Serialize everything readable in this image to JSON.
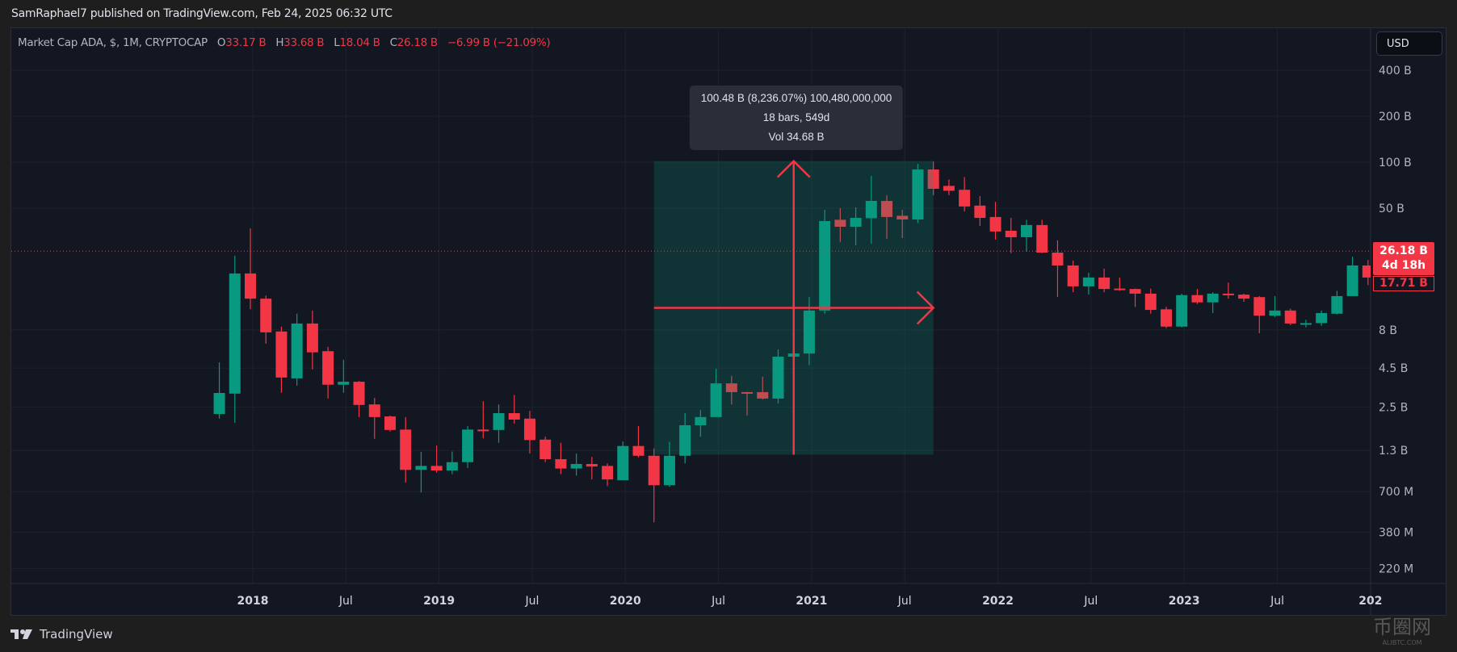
{
  "header": {
    "published": "SamRaphael7 published on TradingView.com, Feb 24, 2025 06:32 UTC"
  },
  "legend": {
    "symbol": "Market Cap ADA, $, 1M, CRYPTOCAP",
    "o_label": "O",
    "o": "33.17 B",
    "h_label": "H",
    "h": "33.68 B",
    "l_label": "L",
    "l": "18.04 B",
    "c_label": "C",
    "c": "26.18 B",
    "change": "−6.99 B (−21.09%)"
  },
  "currency_button": "USD",
  "price_badge": {
    "price": "26.18 B",
    "countdown": "4d 18h",
    "prev": "17.71 B"
  },
  "measure_tooltip": {
    "line1": "100.48 B (8,236.07%) 100,480,000,000",
    "line2": "18 bars, 549d",
    "line3": "Vol 34.68 B"
  },
  "footer": {
    "brand": "TradingView"
  },
  "watermark": {
    "text": "币圈网",
    "sub": "ALIBTC.COM"
  },
  "colors": {
    "up": "#089981",
    "down": "#f23645",
    "measure_fill": "#089981",
    "grid": "#1e222d"
  },
  "chart_data": {
    "type": "candlestick",
    "title": "Market Cap ADA, $, 1M, CRYPTOCAP",
    "yscale": "log",
    "units": "B USD",
    "last_price": 26.18,
    "y_ticks": [
      {
        "v": 400,
        "label": "400 B"
      },
      {
        "v": 200,
        "label": "200 B"
      },
      {
        "v": 100,
        "label": "100 B"
      },
      {
        "v": 50,
        "label": "50 B"
      },
      {
        "v": 8,
        "label": "8 B"
      },
      {
        "v": 4.5,
        "label": "4.5 B"
      },
      {
        "v": 2.5,
        "label": "2.5 B"
      },
      {
        "v": 1.3,
        "label": "1.3 B"
      },
      {
        "v": 0.7,
        "label": "700 M"
      },
      {
        "v": 0.38,
        "label": "380 M"
      },
      {
        "v": 0.22,
        "label": "220 M"
      }
    ],
    "x_ticks": [
      {
        "i": 2,
        "label": "2018"
      },
      {
        "i": 8,
        "label": "Jul"
      },
      {
        "i": 14,
        "label": "2019"
      },
      {
        "i": 20,
        "label": "Jul"
      },
      {
        "i": 26,
        "label": "2020"
      },
      {
        "i": 32,
        "label": "Jul"
      },
      {
        "i": 38,
        "label": "2021"
      },
      {
        "i": 44,
        "label": "Jul"
      },
      {
        "i": 50,
        "label": "2022"
      },
      {
        "i": 56,
        "label": "Jul"
      },
      {
        "i": 62,
        "label": "2023"
      },
      {
        "i": 68,
        "label": "Jul"
      },
      {
        "i": 74,
        "label": "202"
      }
    ],
    "columns": [
      "month",
      "open",
      "high",
      "low",
      "close"
    ],
    "candles": [
      [
        "2017-11",
        2.25,
        4.9,
        2.1,
        3.09
      ],
      [
        "2017-12",
        3.06,
        24.4,
        1.97,
        18.7
      ],
      [
        "2018-01",
        18.7,
        36.9,
        10.9,
        12.8
      ],
      [
        "2018-02",
        12.8,
        13.4,
        6.5,
        7.7
      ],
      [
        "2018-03",
        7.8,
        8.4,
        3.1,
        3.9
      ],
      [
        "2018-04",
        3.85,
        10.2,
        3.45,
        8.8
      ],
      [
        "2018-05",
        8.8,
        10.7,
        4.4,
        5.7
      ],
      [
        "2018-06",
        5.8,
        6.2,
        2.84,
        3.5
      ],
      [
        "2018-07",
        3.5,
        5.1,
        3.1,
        3.66
      ],
      [
        "2018-08",
        3.66,
        3.7,
        2.15,
        2.58
      ],
      [
        "2018-09",
        2.6,
        2.87,
        1.55,
        2.15
      ],
      [
        "2018-10",
        2.17,
        2.2,
        1.73,
        1.77
      ],
      [
        "2018-11",
        1.78,
        2.15,
        0.8,
        0.97
      ],
      [
        "2018-12",
        0.97,
        1.27,
        0.69,
        1.03
      ],
      [
        "2019-01",
        1.03,
        1.4,
        0.93,
        0.96
      ],
      [
        "2019-02",
        0.96,
        1.28,
        0.91,
        1.09
      ],
      [
        "2019-03",
        1.09,
        1.88,
        1.0,
        1.78
      ],
      [
        "2019-04",
        1.78,
        2.73,
        1.56,
        1.76
      ],
      [
        "2019-05",
        1.77,
        2.6,
        1.46,
        2.28
      ],
      [
        "2019-06",
        2.28,
        3.0,
        1.95,
        2.07
      ],
      [
        "2019-07",
        2.1,
        2.36,
        1.24,
        1.52
      ],
      [
        "2019-08",
        1.53,
        1.6,
        1.09,
        1.14
      ],
      [
        "2019-09",
        1.14,
        1.46,
        0.91,
        0.99
      ],
      [
        "2019-10",
        0.99,
        1.24,
        0.89,
        1.06
      ],
      [
        "2019-11",
        1.06,
        1.18,
        0.84,
        1.02
      ],
      [
        "2019-12",
        1.03,
        1.07,
        0.76,
        0.84
      ],
      [
        "2020-01",
        0.83,
        1.49,
        0.83,
        1.39
      ],
      [
        "2020-02",
        1.39,
        1.88,
        1.17,
        1.2
      ],
      [
        "2020-03",
        1.2,
        1.34,
        0.44,
        0.77
      ],
      [
        "2020-04",
        0.77,
        1.48,
        0.75,
        1.2
      ],
      [
        "2020-05",
        1.2,
        2.28,
        1.07,
        1.9
      ],
      [
        "2020-06",
        1.9,
        2.39,
        1.6,
        2.15
      ],
      [
        "2020-07",
        2.15,
        4.45,
        2.15,
        3.57
      ],
      [
        "2020-08",
        3.57,
        4.0,
        2.6,
        3.13
      ],
      [
        "2020-09",
        3.13,
        3.15,
        2.2,
        3.12
      ],
      [
        "2020-10",
        3.13,
        3.95,
        2.8,
        2.84
      ],
      [
        "2020-11",
        2.84,
        5.96,
        2.64,
        5.34
      ],
      [
        "2020-12",
        5.34,
        5.7,
        5.3,
        5.6
      ],
      [
        "2021-01",
        5.6,
        13.1,
        4.7,
        10.7
      ],
      [
        "2021-02",
        10.7,
        48.8,
        10.2,
        41.2
      ],
      [
        "2021-03",
        42,
        50,
        30,
        37.8
      ],
      [
        "2021-04",
        37.8,
        50.6,
        28.6,
        43.2
      ],
      [
        "2021-05",
        43,
        81.3,
        29.3,
        55.8
      ],
      [
        "2021-06",
        55.8,
        60.8,
        31.5,
        43.8
      ],
      [
        "2021-07",
        44.6,
        48.8,
        31.9,
        42.2
      ],
      [
        "2021-08",
        42.2,
        97.6,
        40,
        89.6
      ],
      [
        "2021-09",
        89.6,
        101,
        60.8,
        67
      ],
      [
        "2021-10",
        70,
        77,
        60.8,
        65
      ],
      [
        "2021-11",
        66,
        80,
        47.6,
        51.3
      ],
      [
        "2021-12",
        52,
        60,
        38.3,
        43.2
      ],
      [
        "2022-01",
        43.8,
        55,
        31.2,
        35.2
      ],
      [
        "2022-02",
        35.6,
        43.2,
        25.4,
        32.3
      ],
      [
        "2022-03",
        32.3,
        42,
        26,
        38.8
      ],
      [
        "2022-04",
        38.8,
        42,
        25.4,
        25.6
      ],
      [
        "2022-05",
        25.6,
        30.8,
        13.1,
        21.1
      ],
      [
        "2022-06",
        21.1,
        22.7,
        14.1,
        15.4
      ],
      [
        "2022-07",
        15.4,
        18.9,
        13.6,
        17.6
      ],
      [
        "2022-08",
        17.6,
        20.1,
        14.1,
        14.8
      ],
      [
        "2022-09",
        14.9,
        17.6,
        14.4,
        14.8
      ],
      [
        "2022-10",
        14.8,
        14.9,
        11.3,
        13.8
      ],
      [
        "2022-11",
        13.8,
        14.9,
        10.2,
        10.8
      ],
      [
        "2022-12",
        10.9,
        11.3,
        8.2,
        8.4
      ],
      [
        "2023-01",
        8.4,
        13.8,
        8.3,
        13.5
      ],
      [
        "2023-02",
        13.5,
        14.8,
        11.8,
        12.1
      ],
      [
        "2023-03",
        12.1,
        14.1,
        10.3,
        13.8
      ],
      [
        "2023-04",
        13.8,
        16.3,
        12.8,
        13.6
      ],
      [
        "2023-05",
        13.6,
        13.8,
        12.2,
        12.8
      ],
      [
        "2023-06",
        13.1,
        13.3,
        7.6,
        9.9
      ],
      [
        "2023-07",
        9.9,
        13.3,
        9.7,
        10.7
      ],
      [
        "2023-08",
        10.7,
        11,
        8.6,
        8.8
      ],
      [
        "2023-09",
        8.8,
        9.3,
        8.3,
        8.85
      ],
      [
        "2023-10",
        8.85,
        10.7,
        8.5,
        10.3
      ],
      [
        "2023-11",
        10.2,
        14.4,
        10.1,
        13.3
      ],
      [
        "2023-12",
        13.3,
        24.1,
        13.3,
        21.1
      ],
      [
        "2024-01",
        21.1,
        22.9,
        15.7,
        17.6
      ]
    ],
    "measure": {
      "from_index": 28,
      "to_index": 46,
      "from_value": 1.22,
      "to_value": 101.7
    }
  }
}
